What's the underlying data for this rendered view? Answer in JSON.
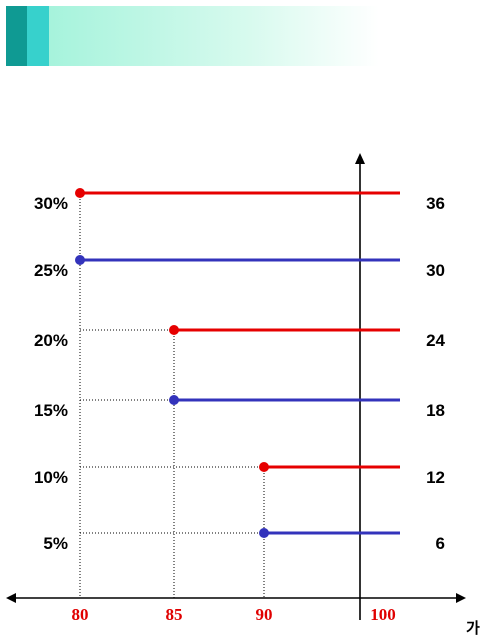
{
  "header": {
    "colors": [
      "#0f9a93",
      "#37d1cc",
      "#a6f3dc"
    ]
  },
  "chart_data": {
    "type": "line",
    "x_ticks": [
      "80",
      "85",
      "90",
      "100"
    ],
    "x_unit": "가",
    "left_labels": [
      "30%",
      "25%",
      "20%",
      "15%",
      "10%",
      "5%"
    ],
    "right_labels": [
      "36",
      "30",
      "24",
      "18",
      "12",
      "6"
    ],
    "series": [
      {
        "label": "30%",
        "start_x": 80,
        "color": "#e60000"
      },
      {
        "label": "25%",
        "start_x": 80,
        "color": "#3333bb"
      },
      {
        "label": "20%",
        "start_x": 85,
        "color": "#e60000"
      },
      {
        "label": "15%",
        "start_x": 85,
        "color": "#3333bb"
      },
      {
        "label": "10%",
        "start_x": 90,
        "color": "#e60000"
      },
      {
        "label": "5%",
        "start_x": 90,
        "color": "#3333bb"
      }
    ]
  }
}
